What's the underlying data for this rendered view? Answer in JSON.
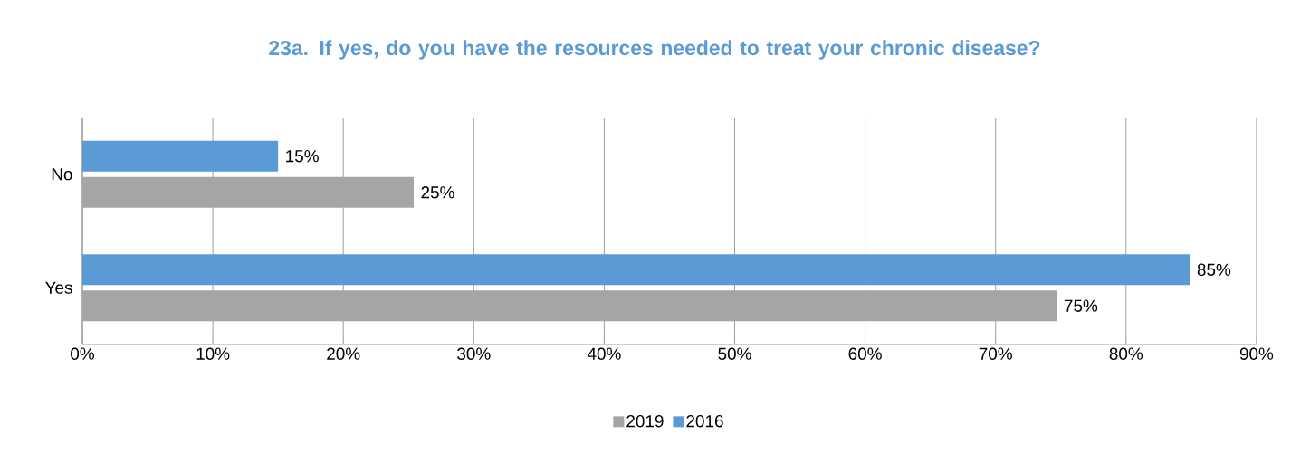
{
  "chart_data": {
    "type": "bar",
    "orientation": "horizontal",
    "title": "23a. If yes, do you have the resources needed to treat your chronic disease?",
    "categories": [
      "No",
      "Yes"
    ],
    "series": [
      {
        "name": "2019",
        "color": "#a5a5a5",
        "values": [
          25.4,
          74.7
        ],
        "value_labels": [
          "25%",
          "75%"
        ]
      },
      {
        "name": "2016",
        "color": "#5b9bd5",
        "values": [
          15.0,
          84.9
        ],
        "value_labels": [
          "15%",
          "85%"
        ]
      }
    ],
    "xlim": [
      0,
      90
    ],
    "xticks": [
      {
        "value": 0,
        "label": "0%"
      },
      {
        "value": 10,
        "label": "10%"
      },
      {
        "value": 20,
        "label": "20%"
      },
      {
        "value": 30,
        "label": "30%"
      },
      {
        "value": 40,
        "label": "40%"
      },
      {
        "value": 50,
        "label": "50%"
      },
      {
        "value": 60,
        "label": "60%"
      },
      {
        "value": 70,
        "label": "70%"
      },
      {
        "value": 80,
        "label": "80%"
      },
      {
        "value": 90,
        "label": "90%"
      }
    ],
    "grid": "x",
    "legend": "bottom"
  }
}
